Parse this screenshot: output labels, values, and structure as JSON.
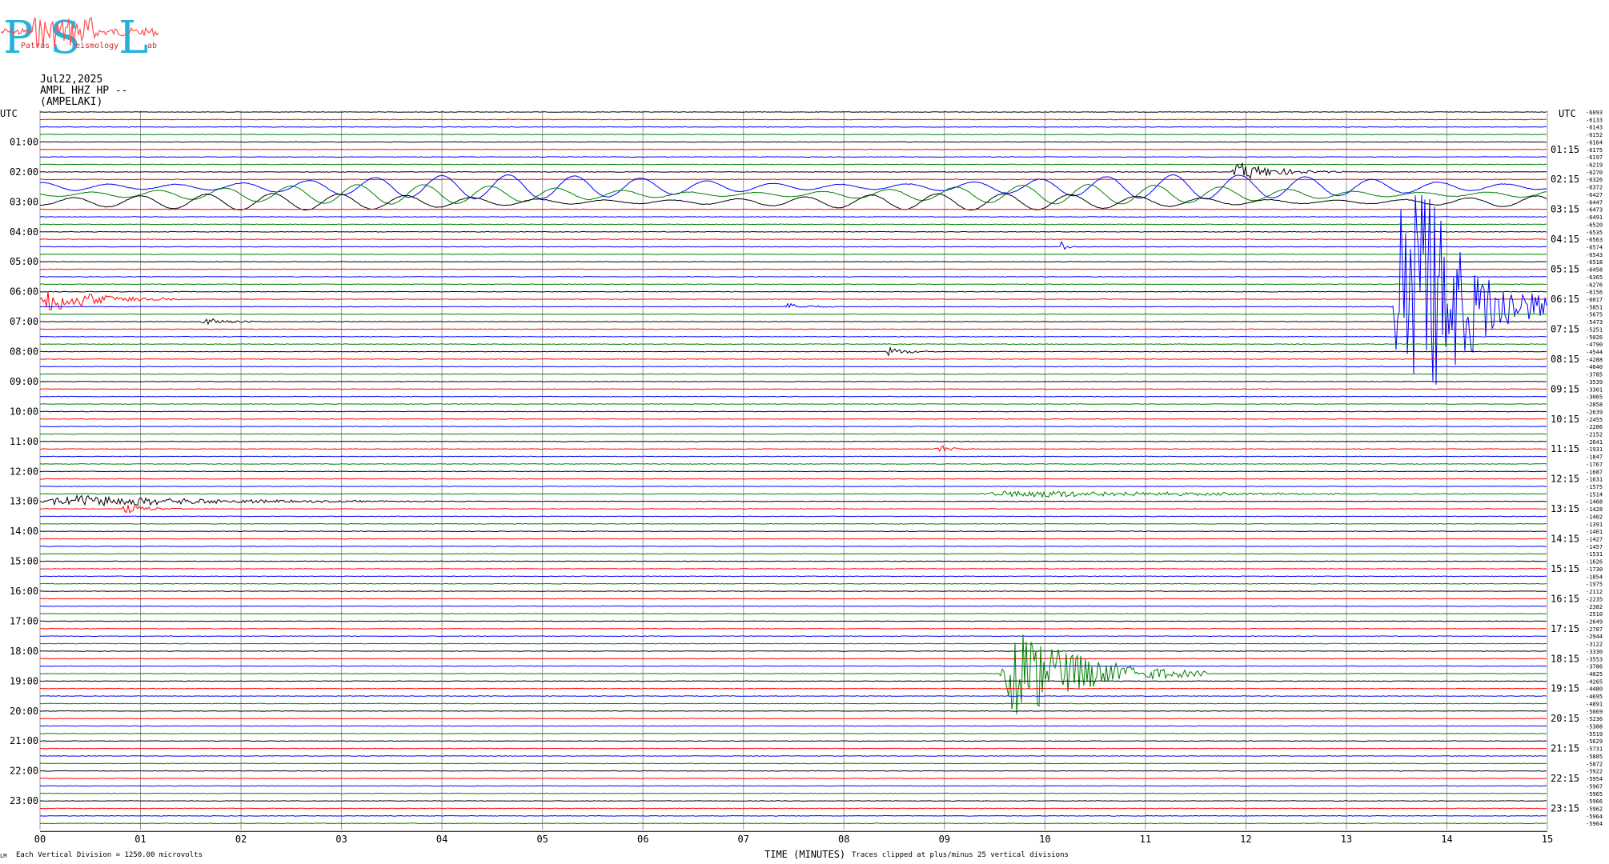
{
  "header": {
    "logo_letters": [
      "P",
      "S",
      "L"
    ],
    "logo_words": [
      "Patras",
      "eismology",
      "ab"
    ],
    "date": "Jul22,2025",
    "channel": "AMPL HHZ HP --",
    "station": "(AMPELAKI)"
  },
  "footer": {
    "scale_note": "Each Vertical Division = 1250.00 microvolts",
    "xlabel": "TIME (MINUTES)",
    "clip_note": "Traces clipped at plus/minus 25 vertical divisions",
    "corner_mark": "LM"
  },
  "colors": {
    "trace_cycle": [
      "#000000",
      "#ff0000",
      "#0000ff",
      "#008000"
    ],
    "grid": "#9a9a9a"
  },
  "chart_data": {
    "type": "line",
    "title": "",
    "xlabel": "TIME (MINUTES)",
    "xlim": [
      0,
      15
    ],
    "x_ticks": [
      "00",
      "01",
      "02",
      "03",
      "04",
      "05",
      "06",
      "07",
      "08",
      "09",
      "10",
      "11",
      "12",
      "13",
      "14",
      "15"
    ],
    "left_axis_title": "UTC",
    "right_axis_title": "UTC",
    "left_hour_labels": [
      "01:00",
      "02:00",
      "03:00",
      "04:00",
      "05:00",
      "06:00",
      "07:00",
      "08:00",
      "09:00",
      "10:00",
      "11:00",
      "12:00",
      "13:00",
      "14:00",
      "15:00",
      "16:00",
      "17:00",
      "18:00",
      "19:00",
      "20:00",
      "21:00",
      "22:00",
      "23:00"
    ],
    "right_hour_labels": [
      "01:15",
      "02:15",
      "03:15",
      "04:15",
      "05:15",
      "06:15",
      "07:15",
      "08:15",
      "09:15",
      "10:15",
      "11:15",
      "12:15",
      "13:15",
      "14:15",
      "15:15",
      "16:15",
      "17:15",
      "18:15",
      "19:15",
      "20:15",
      "21:15",
      "22:15",
      "23:15"
    ],
    "trace_count": 96,
    "trace_offsets": [
      "-6093",
      "-6133",
      "-6143",
      "-6152",
      "-6164",
      "-6175",
      "-6197",
      "-6219",
      "-6270",
      "-6326",
      "-6372",
      "-6427",
      "-6447",
      "-6473",
      "-6491",
      "-6520",
      "-6535",
      "-6563",
      "-6574",
      "-6543",
      "-6518",
      "-6458",
      "-6365",
      "-6276",
      "-6156",
      "-6017",
      "-5851",
      "-5675",
      "-5473",
      "-5251",
      "-5026",
      "-4790",
      "-4544",
      "-4288",
      "-4040",
      "-3785",
      "-3539",
      "-3301",
      "-3065",
      "-2858",
      "-2639",
      "-2455",
      "-2286",
      "-2152",
      "-2041",
      "-1931",
      "-1847",
      "-1767",
      "-1687",
      "-1631",
      "-1575",
      "-1514",
      "-1468",
      "-1428",
      "-1402",
      "-1391",
      "-1401",
      "-1427",
      "-1457",
      "-1531",
      "-1626",
      "-1730",
      "-1854",
      "-1975",
      "-2112",
      "-2235",
      "-2382",
      "-2510",
      "-2649",
      "-2787",
      "-2944",
      "-3122",
      "-3330",
      "-3553",
      "-3786",
      "-4025",
      "-4265",
      "-4480",
      "-4695",
      "-4891",
      "-5069",
      "-5236",
      "-5388",
      "-5519",
      "-5629",
      "-5731",
      "-5805",
      "-5872",
      "-5922",
      "-5954",
      "-5967",
      "-5965",
      "-5966",
      "-5962",
      "-5964",
      "-5964"
    ],
    "events": [
      {
        "trace": 8,
        "start_min": 11.85,
        "end_min": 13.0,
        "amp_div": 1.3,
        "note": "regional event"
      },
      {
        "trace": 10,
        "start_min": 0.0,
        "end_min": 15.0,
        "amp_div": 1.6,
        "note": "long-period oscillation"
      },
      {
        "trace": 11,
        "start_min": 0.0,
        "end_min": 15.0,
        "amp_div": 1.3,
        "note": "long-period oscillation"
      },
      {
        "trace": 12,
        "start_min": 0.0,
        "end_min": 15.0,
        "amp_div": 1.1,
        "note": "long-period oscillation"
      },
      {
        "trace": 18,
        "start_min": 10.15,
        "end_min": 10.3,
        "amp_div": 0.8
      },
      {
        "trace": 25,
        "start_min": 0.0,
        "end_min": 1.4,
        "amp_div": 1.8
      },
      {
        "trace": 26,
        "start_min": 7.4,
        "end_min": 8.0,
        "amp_div": 0.5
      },
      {
        "trace": 28,
        "start_min": 1.6,
        "end_min": 2.3,
        "amp_div": 0.6
      },
      {
        "trace": 32,
        "start_min": 8.4,
        "end_min": 9.0,
        "amp_div": 0.6
      },
      {
        "trace": 45,
        "start_min": 8.9,
        "end_min": 9.4,
        "amp_div": 0.6
      },
      {
        "trace": 52,
        "start_min": 0.0,
        "end_min": 4.1,
        "amp_div": 0.9
      },
      {
        "trace": 53,
        "start_min": 0.8,
        "end_min": 1.5,
        "amp_div": 0.7
      },
      {
        "trace": 51,
        "start_min": 9.3,
        "end_min": 15.0,
        "amp_div": 0.5
      },
      {
        "trace": 75,
        "start_min": 9.55,
        "end_min": 11.6,
        "amp_div": 6.5,
        "note": "local earthquake"
      },
      {
        "trace": 26,
        "start_min": 13.45,
        "end_min": 15.0,
        "amp_div": 25,
        "note": "large earthquake, clipped"
      }
    ]
  }
}
